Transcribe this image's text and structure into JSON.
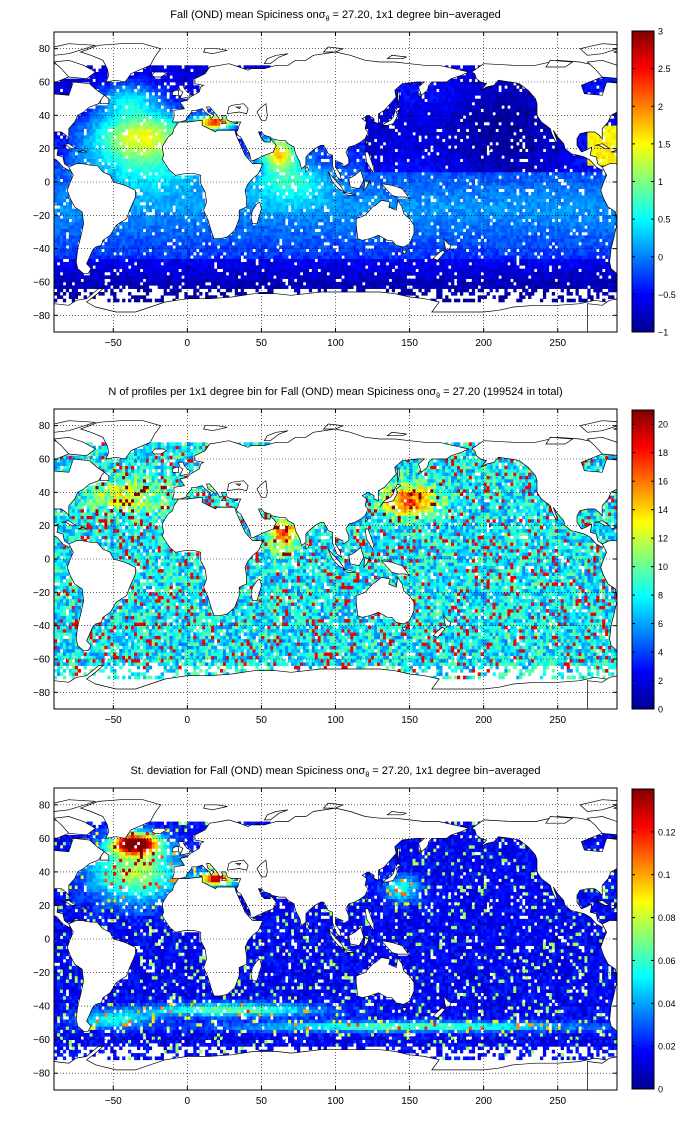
{
  "figure": {
    "background": "#ffffff"
  },
  "chart_data": [
    {
      "type": "heatmap",
      "title_main": "Fall (OND) mean Spiciness on",
      "title_sigma": "σ",
      "title_sub": "θ",
      "title_rest": " = 27.20, 1x1 degree bin−averaged",
      "xlim": [
        -90,
        290
      ],
      "ylim": [
        -90,
        90
      ],
      "x_ticks": [
        -50,
        0,
        50,
        100,
        150,
        200,
        250
      ],
      "x_tick_labels": [
        "−50",
        "0",
        "50",
        "100",
        "150",
        "200",
        "250"
      ],
      "y_ticks": [
        80,
        60,
        40,
        20,
        0,
        -20,
        -40,
        -60,
        -80
      ],
      "y_tick_labels": [
        "80",
        "60",
        "40",
        "20",
        "0",
        "−20",
        "−40",
        "−60",
        "−80"
      ],
      "grid": true,
      "colormap": "jet",
      "color_range": [
        -1,
        3
      ],
      "colorbar_ticks": [
        3,
        2.5,
        2,
        1.5,
        1,
        0.5,
        0,
        -0.5,
        -1
      ],
      "colorbar_tick_labels": [
        "3",
        "2.5",
        "2",
        "1.5",
        "1",
        "0.5",
        "0",
        "−0.5",
        "−1"
      ],
      "field": "spice"
    },
    {
      "type": "heatmap",
      "title_main": "N of profiles per 1x1 degree bin for Fall (OND) mean Spiciness on",
      "title_sigma": "σ",
      "title_sub": "θ",
      "title_rest": " = 27.20 (199524 in total)",
      "xlim": [
        -90,
        290
      ],
      "ylim": [
        -90,
        90
      ],
      "x_ticks": [
        -50,
        0,
        50,
        100,
        150,
        200,
        250
      ],
      "x_tick_labels": [
        "−50",
        "0",
        "50",
        "100",
        "150",
        "200",
        "250"
      ],
      "y_ticks": [
        80,
        60,
        40,
        20,
        0,
        -20,
        -40,
        -60,
        -80
      ],
      "y_tick_labels": [
        "80",
        "60",
        "40",
        "20",
        "0",
        "−20",
        "−40",
        "−60",
        "−80"
      ],
      "grid": true,
      "colormap": "jet",
      "color_range": [
        0,
        21
      ],
      "colorbar_ticks": [
        20,
        18,
        16,
        14,
        12,
        10,
        8,
        6,
        4,
        2,
        0
      ],
      "colorbar_tick_labels": [
        "20",
        "18",
        "16",
        "14",
        "12",
        "10",
        "8",
        "6",
        "4",
        "2",
        "0"
      ],
      "field": "count"
    },
    {
      "type": "heatmap",
      "title_main": "St. deviation for Fall (OND) mean Spiciness on",
      "title_sigma": "σ",
      "title_sub": "θ",
      "title_rest": " = 27.20, 1x1 degree bin−averaged",
      "xlim": [
        -90,
        290
      ],
      "ylim": [
        -90,
        90
      ],
      "x_ticks": [
        -50,
        0,
        50,
        100,
        150,
        200,
        250
      ],
      "x_tick_labels": [
        "−50",
        "0",
        "50",
        "100",
        "150",
        "200",
        "250"
      ],
      "y_ticks": [
        80,
        60,
        40,
        20,
        0,
        -20,
        -40,
        -60,
        -80
      ],
      "y_tick_labels": [
        "80",
        "60",
        "40",
        "20",
        "0",
        "−20",
        "−40",
        "−60",
        "−80"
      ],
      "grid": true,
      "colormap": "jet",
      "color_range": [
        0,
        0.14
      ],
      "colorbar_ticks": [
        0.12,
        0.1,
        0.08,
        0.06,
        0.04,
        0.02,
        0
      ],
      "colorbar_tick_labels": [
        "0.12",
        "0.1",
        "0.08",
        "0.06",
        "0.04",
        "0.02",
        "0"
      ],
      "field": "std"
    }
  ]
}
